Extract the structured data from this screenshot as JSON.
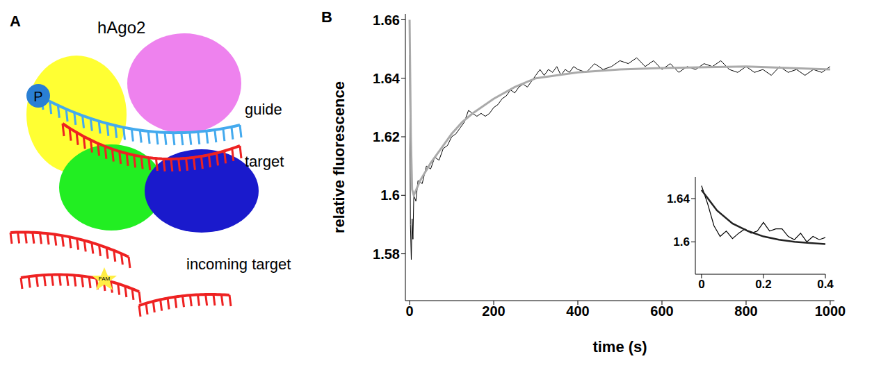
{
  "diagram": {
    "panel": "A",
    "title": "hAgo2",
    "labels": {
      "phosphate": "P",
      "guide": "guide",
      "target": "target",
      "incoming": "incoming target",
      "dye": "FAM"
    }
  },
  "chart_data": [
    {
      "panel": "B",
      "type": "line",
      "x_label": "time (s)",
      "y_label": "relative fluorescence",
      "xlim": [
        -10,
        1010
      ],
      "ylim": [
        1.564,
        1.662
      ],
      "xticks": [
        0,
        200,
        400,
        600,
        800,
        1000
      ],
      "yticks": [
        1.58,
        1.6,
        1.62,
        1.64,
        1.66
      ],
      "series": [
        {
          "color": "#000000",
          "x": [
            0,
            2,
            4,
            6,
            8,
            10,
            15,
            20,
            30,
            40,
            50,
            60,
            70,
            80,
            90,
            100,
            110,
            120,
            130,
            140,
            150,
            160,
            170,
            180,
            190,
            200,
            210,
            220,
            230,
            240,
            250,
            260,
            270,
            280,
            290,
            300,
            310,
            320,
            330,
            340,
            350,
            360,
            370,
            380,
            390,
            400,
            420,
            440,
            460,
            480,
            500,
            520,
            540,
            560,
            580,
            600,
            620,
            640,
            660,
            680,
            700,
            720,
            740,
            760,
            780,
            800,
            820,
            840,
            860,
            880,
            900,
            920,
            940,
            960,
            980,
            1000
          ],
          "values": [
            1.648,
            1.59,
            1.578,
            1.592,
            1.585,
            1.6,
            1.598,
            1.605,
            1.604,
            1.61,
            1.609,
            1.613,
            1.612,
            1.616,
            1.617,
            1.62,
            1.621,
            1.623,
            1.625,
            1.629,
            1.628,
            1.627,
            1.628,
            1.627,
            1.628,
            1.63,
            1.631,
            1.633,
            1.634,
            1.636,
            1.635,
            1.637,
            1.638,
            1.637,
            1.639,
            1.641,
            1.643,
            1.641,
            1.643,
            1.642,
            1.644,
            1.641,
            1.643,
            1.642,
            1.644,
            1.643,
            1.642,
            1.645,
            1.643,
            1.644,
            1.646,
            1.645,
            1.647,
            1.644,
            1.646,
            1.643,
            1.645,
            1.642,
            1.644,
            1.643,
            1.645,
            1.644,
            1.646,
            1.643,
            1.642,
            1.644,
            1.642,
            1.643,
            1.641,
            1.644,
            1.642,
            1.643,
            1.641,
            1.643,
            1.642,
            1.644
          ]
        },
        {
          "color": "#aaaaaa",
          "x": [
            0,
            3,
            6,
            10,
            25,
            50,
            75,
            100,
            125,
            150,
            200,
            250,
            300,
            350,
            400,
            500,
            600,
            800,
            1000
          ],
          "values": [
            1.66,
            1.62,
            1.602,
            1.6,
            1.605,
            1.611,
            1.616,
            1.621,
            1.625,
            1.628,
            1.633,
            1.637,
            1.64,
            1.641,
            1.642,
            1.643,
            1.6435,
            1.644,
            1.643
          ]
        }
      ]
    },
    {
      "type": "line",
      "xlim": [
        -0.02,
        0.4
      ],
      "ylim": [
        1.57,
        1.66
      ],
      "xticks": [
        0,
        0.2,
        0.4
      ],
      "yticks": [
        1.6,
        1.64
      ],
      "series": [
        {
          "color": "#000000",
          "x": [
            0,
            0.02,
            0.04,
            0.06,
            0.08,
            0.1,
            0.12,
            0.14,
            0.16,
            0.18,
            0.2,
            0.22,
            0.24,
            0.26,
            0.28,
            0.3,
            0.32,
            0.34,
            0.36,
            0.38,
            0.4
          ],
          "values": [
            1.652,
            1.635,
            1.615,
            1.605,
            1.61,
            1.603,
            1.608,
            1.612,
            1.608,
            1.61,
            1.618,
            1.61,
            1.612,
            1.612,
            1.605,
            1.602,
            1.608,
            1.6,
            1.605,
            1.602,
            1.604
          ]
        },
        {
          "color": "#222222",
          "x": [
            0,
            0.05,
            0.1,
            0.15,
            0.2,
            0.25,
            0.3,
            0.35,
            0.4
          ],
          "values": [
            1.648,
            1.629,
            1.617,
            1.61,
            1.605,
            1.602,
            1.6,
            1.599,
            1.598
          ]
        }
      ]
    }
  ]
}
